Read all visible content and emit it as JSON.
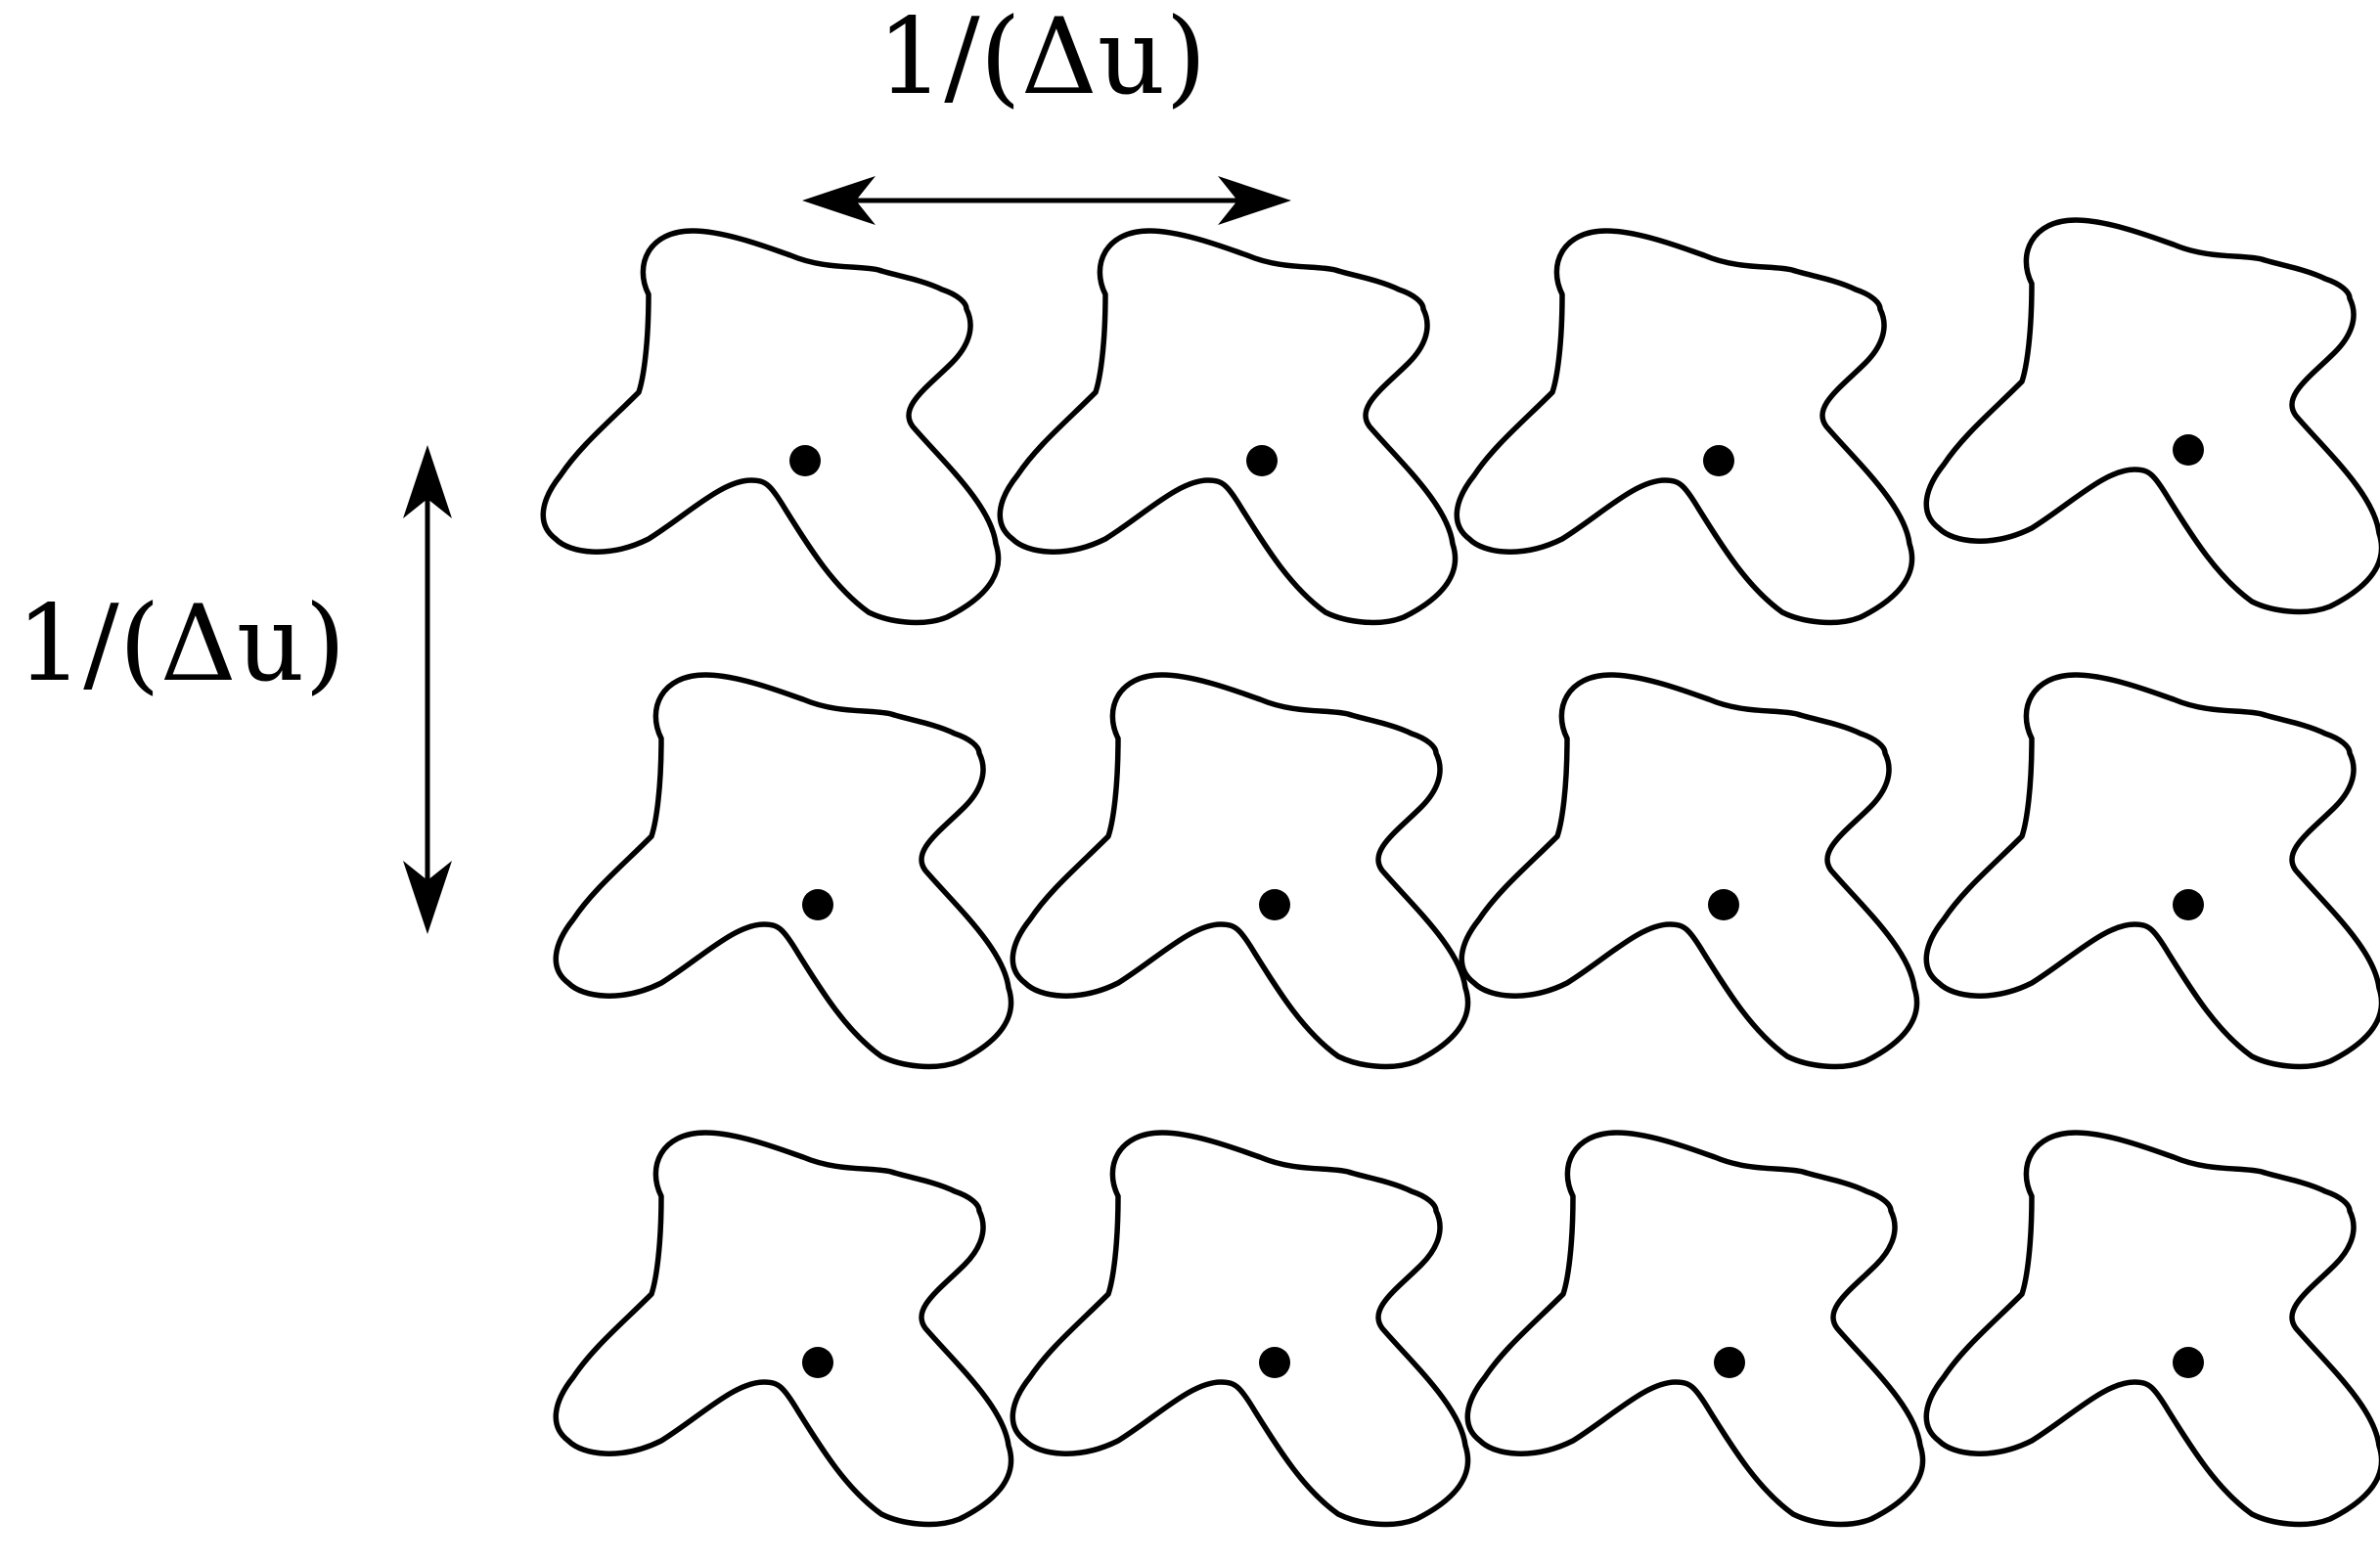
{
  "diagram": {
    "labels": {
      "horizontal_spacing": "1/(Δu)",
      "vertical_spacing": "1/(Δu)"
    },
    "grid": {
      "rows": 3,
      "columns": 4
    },
    "colors": {
      "stroke": "#000000",
      "background": "#ffffff"
    }
  }
}
